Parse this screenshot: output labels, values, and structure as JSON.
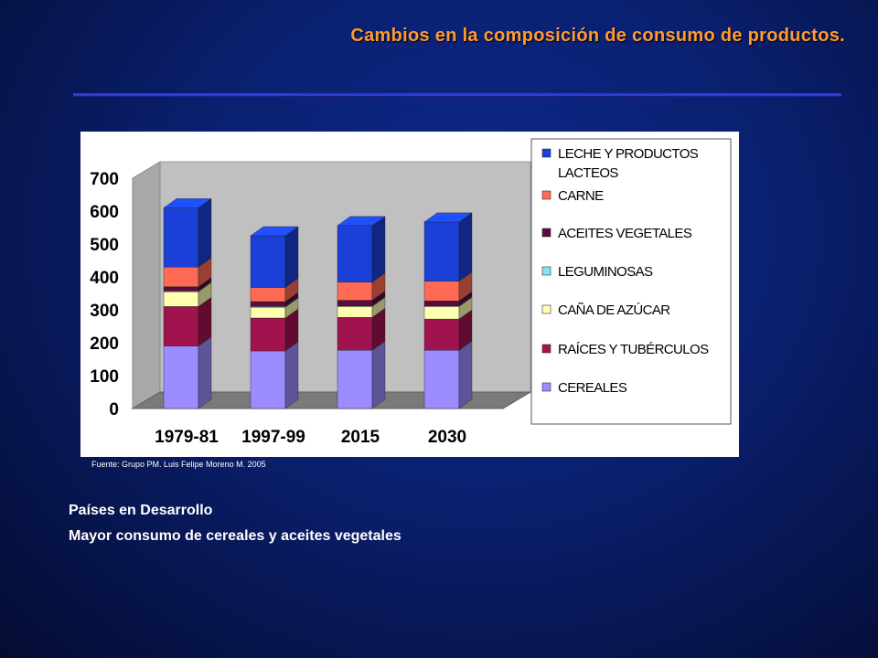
{
  "slide": {
    "title": "Cambios en la composición de consumo de productos.",
    "source": "Fuente:  Grupo PM.  Luis Felipe Moreno M.  2005",
    "notes": [
      "Países en Desarrollo",
      "Mayor consumo de cereales y aceites vegetales"
    ]
  },
  "chart_data": {
    "type": "bar",
    "stacked": true,
    "three_d": true,
    "categories": [
      "1979-81",
      "1997-99",
      "2015",
      "2030"
    ],
    "ylim": [
      0,
      700
    ],
    "yticks": [
      0,
      100,
      200,
      300,
      400,
      500,
      600,
      700
    ],
    "legend_position": "right",
    "series": [
      {
        "name": "CEREALES",
        "color": "#9b8cff",
        "values": [
          190,
          175,
          177,
          177
        ]
      },
      {
        "name": "RAÍCES Y TUBÉRCULOS",
        "color": "#a0134e",
        "values": [
          120,
          100,
          100,
          95
        ]
      },
      {
        "name": "CAÑA DE AZÚCAR",
        "color": "#ffffb0",
        "values": [
          45,
          33,
          33,
          38
        ]
      },
      {
        "name": "LEGUMINOSAS",
        "color": "#7fe7f2",
        "values": [
          2,
          2,
          2,
          2
        ]
      },
      {
        "name": "ACEITES VEGETALES",
        "color": "#5a0a3c",
        "values": [
          13,
          15,
          17,
          15
        ]
      },
      {
        "name": "CARNE",
        "color": "#ff6a55",
        "values": [
          60,
          43,
          55,
          60
        ]
      },
      {
        "name": "LECHE Y PRODUCTOS LACTEOS",
        "color": "#1a40d8",
        "values": [
          180,
          157,
          172,
          180
        ]
      }
    ],
    "legend_order": [
      "LECHE Y PRODUCTOS LACTEOS",
      "CARNE",
      "ACEITES VEGETALES",
      "LEGUMINOSAS",
      "CAÑA DE AZÚCAR",
      "RAÍCES Y TUBÉRCULOS",
      "CEREALES"
    ]
  }
}
